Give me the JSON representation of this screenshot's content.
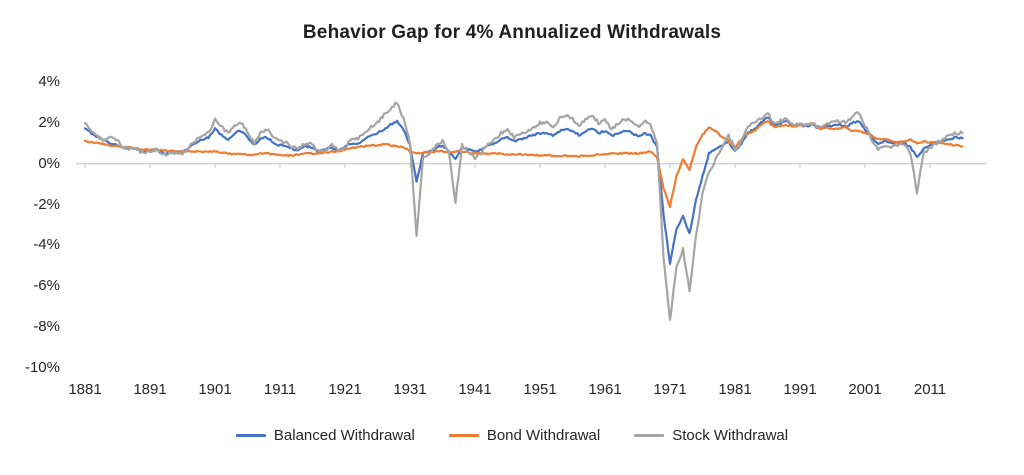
{
  "title": "Behavior Gap for 4% Annualized Withdrawals",
  "colors": {
    "balanced": "#4472C4",
    "bond": "#ED7D31",
    "stock": "#A5A5A5",
    "zero_line": "#BFBFBF",
    "text": "#262626"
  },
  "chart_data": {
    "type": "line",
    "title": "Behavior Gap for 4% Annualized Withdrawals",
    "xlabel": "",
    "ylabel": "",
    "ylim": [
      -10,
      4
    ],
    "grid": "zero-line-only",
    "legend_position": "bottom",
    "y_ticks": [
      4,
      2,
      0,
      -2,
      -4,
      -6,
      -8,
      -10
    ],
    "y_tick_labels": [
      "4%",
      "2%",
      "0%",
      "-2%",
      "-4%",
      "-6%",
      "-8%",
      "-10%"
    ],
    "x_ticks": [
      1881,
      1891,
      1901,
      1911,
      1921,
      1931,
      1941,
      1951,
      1961,
      1971,
      1981,
      1991,
      2001,
      2011
    ],
    "years": [
      1881,
      1882,
      1883,
      1884,
      1885,
      1886,
      1887,
      1888,
      1889,
      1890,
      1891,
      1892,
      1893,
      1894,
      1895,
      1896,
      1897,
      1898,
      1899,
      1900,
      1901,
      1902,
      1903,
      1904,
      1905,
      1906,
      1907,
      1908,
      1909,
      1910,
      1911,
      1912,
      1913,
      1914,
      1915,
      1916,
      1917,
      1918,
      1919,
      1920,
      1921,
      1922,
      1923,
      1924,
      1925,
      1926,
      1927,
      1928,
      1929,
      1930,
      1931,
      1932,
      1933,
      1934,
      1935,
      1936,
      1937,
      1938,
      1939,
      1940,
      1941,
      1942,
      1943,
      1944,
      1945,
      1946,
      1947,
      1948,
      1949,
      1950,
      1951,
      1952,
      1953,
      1954,
      1955,
      1956,
      1957,
      1958,
      1959,
      1960,
      1961,
      1962,
      1963,
      1964,
      1965,
      1966,
      1967,
      1968,
      1969,
      1970,
      1971,
      1972,
      1973,
      1974,
      1975,
      1976,
      1977,
      1978,
      1979,
      1980,
      1981,
      1982,
      1983,
      1984,
      1985,
      1986,
      1987,
      1988,
      1989,
      1990,
      1991,
      1992,
      1993,
      1994,
      1995,
      1996,
      1997,
      1998,
      1999,
      2000,
      2001,
      2002,
      2003,
      2004,
      2005,
      2006,
      2007,
      2008,
      2009,
      2010,
      2011,
      2012,
      2013,
      2014,
      2015,
      2016
    ],
    "series": [
      {
        "name": "Balanced Withdrawal",
        "color": "#4472C4",
        "values": [
          1.7,
          1.5,
          1.3,
          1.15,
          1.0,
          0.9,
          0.8,
          0.75,
          0.7,
          0.6,
          0.65,
          0.7,
          0.5,
          0.55,
          0.6,
          0.55,
          0.8,
          1.0,
          1.2,
          1.3,
          1.7,
          1.4,
          1.2,
          1.5,
          1.6,
          1.3,
          0.9,
          1.2,
          1.3,
          1.0,
          0.9,
          0.85,
          0.7,
          0.7,
          0.85,
          0.8,
          0.6,
          0.7,
          0.8,
          0.6,
          0.8,
          1.0,
          1.0,
          1.2,
          1.35,
          1.5,
          1.7,
          1.9,
          2.1,
          1.7,
          0.9,
          -0.9,
          0.5,
          0.6,
          0.8,
          0.9,
          0.6,
          0.2,
          0.8,
          0.7,
          0.6,
          0.7,
          0.9,
          1.0,
          1.2,
          1.3,
          1.1,
          1.2,
          1.3,
          1.4,
          1.5,
          1.5,
          1.4,
          1.6,
          1.7,
          1.6,
          1.4,
          1.6,
          1.7,
          1.5,
          1.6,
          1.35,
          1.5,
          1.6,
          1.55,
          1.35,
          1.5,
          1.4,
          0.8,
          -2.5,
          -4.9,
          -3.2,
          -2.6,
          -3.4,
          -1.8,
          -0.6,
          0.5,
          0.7,
          0.9,
          1.1,
          0.6,
          1.0,
          1.5,
          1.7,
          2.0,
          2.3,
          1.9,
          2.0,
          2.1,
          1.8,
          1.9,
          1.85,
          1.9,
          1.7,
          1.8,
          1.85,
          1.9,
          1.8,
          2.0,
          2.1,
          1.7,
          1.3,
          1.0,
          1.1,
          1.0,
          1.05,
          1.0,
          0.8,
          0.3,
          0.7,
          0.9,
          1.0,
          1.1,
          1.2,
          1.3,
          1.25
        ]
      },
      {
        "name": "Bond Withdrawal",
        "color": "#ED7D31",
        "values": [
          1.1,
          1.05,
          1.0,
          0.95,
          0.9,
          0.85,
          0.8,
          0.8,
          0.75,
          0.7,
          0.7,
          0.7,
          0.65,
          0.65,
          0.6,
          0.6,
          0.6,
          0.6,
          0.6,
          0.6,
          0.6,
          0.55,
          0.5,
          0.5,
          0.5,
          0.45,
          0.45,
          0.5,
          0.5,
          0.45,
          0.45,
          0.4,
          0.4,
          0.45,
          0.5,
          0.5,
          0.5,
          0.55,
          0.6,
          0.6,
          0.7,
          0.8,
          0.8,
          0.85,
          0.9,
          0.9,
          0.95,
          0.9,
          0.85,
          0.8,
          0.6,
          0.5,
          0.55,
          0.6,
          0.6,
          0.6,
          0.55,
          0.6,
          0.6,
          0.55,
          0.5,
          0.5,
          0.5,
          0.5,
          0.5,
          0.45,
          0.45,
          0.45,
          0.45,
          0.45,
          0.4,
          0.4,
          0.4,
          0.4,
          0.4,
          0.35,
          0.35,
          0.4,
          0.4,
          0.45,
          0.45,
          0.5,
          0.5,
          0.5,
          0.5,
          0.5,
          0.55,
          0.6,
          0.3,
          -1.2,
          -2.1,
          -0.6,
          0.2,
          -0.3,
          0.8,
          1.4,
          1.8,
          1.6,
          1.3,
          1.1,
          0.8,
          1.2,
          1.5,
          1.6,
          1.9,
          2.1,
          1.8,
          1.85,
          1.9,
          1.8,
          1.9,
          1.9,
          2.0,
          1.7,
          1.8,
          1.7,
          1.75,
          1.8,
          1.6,
          1.6,
          1.5,
          1.4,
          1.2,
          1.2,
          1.1,
          1.05,
          1.1,
          1.2,
          1.0,
          1.1,
          1.0,
          1.1,
          1.0,
          0.95,
          0.9,
          0.85
        ]
      },
      {
        "name": "Stock Withdrawal",
        "color": "#A5A5A5",
        "values": [
          2.0,
          1.6,
          1.3,
          1.1,
          1.3,
          1.1,
          0.8,
          0.7,
          0.7,
          0.5,
          0.6,
          0.7,
          0.4,
          0.5,
          0.55,
          0.5,
          0.8,
          1.1,
          1.4,
          1.5,
          2.2,
          1.8,
          1.5,
          1.8,
          2.0,
          1.6,
          1.0,
          1.5,
          1.7,
          1.3,
          1.1,
          1.0,
          0.8,
          0.8,
          1.0,
          0.9,
          0.6,
          0.7,
          0.9,
          0.6,
          0.8,
          1.2,
          1.2,
          1.5,
          1.8,
          2.0,
          2.4,
          2.7,
          3.0,
          2.2,
          1.0,
          -3.6,
          0.3,
          0.5,
          0.9,
          1.1,
          0.5,
          -1.9,
          0.9,
          0.5,
          0.3,
          0.5,
          1.0,
          1.2,
          1.5,
          1.7,
          1.3,
          1.5,
          1.6,
          1.8,
          2.0,
          2.0,
          1.8,
          2.2,
          2.4,
          2.2,
          1.8,
          2.2,
          2.4,
          2.0,
          2.2,
          1.7,
          2.0,
          2.2,
          2.1,
          1.8,
          2.1,
          1.9,
          1.0,
          -4.5,
          -7.7,
          -5.0,
          -4.2,
          -6.2,
          -3.5,
          -1.5,
          -0.4,
          0.2,
          0.7,
          1.4,
          0.7,
          1.1,
          1.8,
          2.0,
          2.2,
          2.5,
          2.0,
          2.1,
          2.2,
          1.9,
          2.0,
          1.9,
          1.95,
          1.8,
          1.9,
          2.0,
          2.1,
          2.0,
          2.3,
          2.5,
          1.9,
          1.2,
          0.7,
          0.9,
          0.85,
          0.9,
          1.0,
          0.5,
          -1.4,
          0.5,
          0.8,
          1.0,
          1.2,
          1.4,
          1.5,
          1.5
        ]
      }
    ]
  }
}
